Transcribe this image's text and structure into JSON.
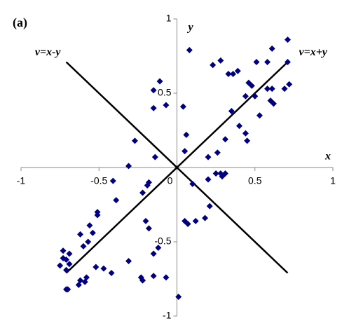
{
  "chart_data": {
    "type": "scatter",
    "title": "(a)",
    "x_label": "x",
    "y_label": "y",
    "color": "#000080",
    "marker": "diamond",
    "xlim": [
      -1,
      1
    ],
    "ylim": [
      -1,
      1
    ],
    "xticks": [
      -1,
      -0.5,
      0,
      0.5,
      1
    ],
    "yticks": [
      -1,
      -0.5,
      0.5,
      1
    ],
    "x": [
      0.71,
      0.61,
      0.08,
      0.28,
      0.23,
      0.71,
      0.58,
      0.51,
      0.33,
      0.36,
      0.39,
      0.46,
      0.48,
      0.58,
      0.61,
      0.69,
      0.72,
      0.5,
      0.44,
      0.6,
      0.62,
      0.35,
      0.53,
      0.4,
      0.44,
      0.45,
      0.31,
      -0.11,
      -0.15,
      -0.07,
      -0.15,
      0.04,
      0.06,
      -0.27,
      0.05,
      -0.14,
      -0.31,
      0.2,
      0.26,
      0.28,
      0.29,
      0.31,
      0.25,
      0.2,
      0.1,
      -0.18,
      -0.19,
      -0.41,
      -0.39,
      -0.22,
      -0.51,
      -0.51,
      -0.2,
      -0.18,
      0.05,
      0.07,
      0.12,
      0.18,
      0.21,
      -0.12,
      -0.15,
      -0.56,
      -0.62,
      -0.54,
      -0.57,
      -0.6,
      -0.69,
      -0.73,
      -0.73,
      -0.71,
      -0.75,
      -0.69,
      -0.71,
      -0.52,
      -0.47,
      -0.42,
      -0.7,
      -0.71,
      -0.62,
      -0.58,
      -0.63,
      -0.59,
      -0.31,
      -0.23,
      -0.22,
      -0.15,
      -0.07,
      0.01
    ],
    "values": [
      0.86,
      0.8,
      0.79,
      0.72,
      0.69,
      0.71,
      0.71,
      0.71,
      0.63,
      0.63,
      0.65,
      0.57,
      0.55,
      0.53,
      0.53,
      0.53,
      0.56,
      0.48,
      0.48,
      0.45,
      0.43,
      0.38,
      0.35,
      0.28,
      0.23,
      0.18,
      0.19,
      0.58,
      0.52,
      0.42,
      0.4,
      0.41,
      0.22,
      0.18,
      0.11,
      0.07,
      0.01,
      0.07,
      0.1,
      -0.04,
      -0.06,
      -0.04,
      -0.04,
      -0.08,
      -0.11,
      -0.1,
      -0.12,
      -0.09,
      -0.22,
      -0.17,
      -0.32,
      -0.3,
      -0.36,
      -0.41,
      -0.36,
      -0.38,
      -0.36,
      -0.34,
      -0.26,
      -0.54,
      -0.58,
      -0.39,
      -0.45,
      -0.44,
      -0.5,
      -0.53,
      -0.58,
      -0.56,
      -0.61,
      -0.62,
      -0.66,
      -0.65,
      -0.69,
      -0.67,
      -0.68,
      -0.71,
      -0.82,
      -0.82,
      -0.76,
      -0.74,
      -0.79,
      -0.77,
      -0.63,
      -0.74,
      -0.76,
      -0.73,
      -0.74,
      -0.87
    ],
    "lines": [
      {
        "name": "v=x-y",
        "color": "#000000",
        "x": [
          -0.71,
          0.71
        ],
        "values": [
          0.71,
          -0.71
        ]
      },
      {
        "name": "v=x+y",
        "color": "#000000",
        "x": [
          -0.71,
          0.71
        ],
        "values": [
          -0.71,
          0.71
        ]
      }
    ]
  }
}
